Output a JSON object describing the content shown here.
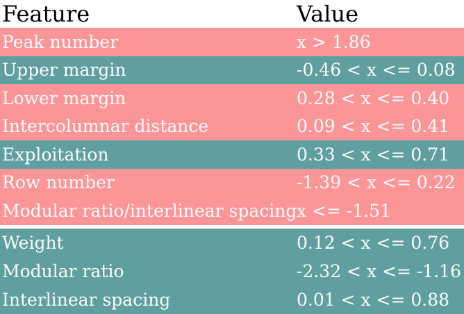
{
  "chart_data": {
    "type": "table",
    "columns": [
      "Feature",
      "Value"
    ],
    "rows": [
      {
        "feature": "Peak number",
        "value": "x > 1.86",
        "tone": "pink"
      },
      {
        "feature": "Upper margin",
        "value": "-0.46 < x <= 0.08",
        "tone": "teal"
      },
      {
        "feature": "Lower margin",
        "value": "0.28 < x <= 0.40",
        "tone": "pink"
      },
      {
        "feature": "Intercolumnar distance",
        "value": "0.09 < x <= 0.41",
        "tone": "pink"
      },
      {
        "feature": "Exploitation",
        "value": "0.33 < x <= 0.71",
        "tone": "teal"
      },
      {
        "feature": "Row number",
        "value": "-1.39 < x <= 0.22",
        "tone": "pink"
      },
      {
        "feature": "Modular ratio/interlinear spacing",
        "value": "x <= -1.51",
        "tone": "pink",
        "gap_after": true
      },
      {
        "feature": "Weight",
        "value": "0.12 < x <= 0.76",
        "tone": "teal"
      },
      {
        "feature": "Modular ratio",
        "value": "-2.32 < x <= -1.16",
        "tone": "teal"
      },
      {
        "feature": "Interlinear spacing",
        "value": "0.01 < x <= 0.88",
        "tone": "teal"
      }
    ],
    "colors": {
      "pink": "#fb9598",
      "teal": "#609fa0",
      "row_text": "#fcfcfc",
      "header_text": "#000000",
      "background": "#ffffff"
    },
    "layout": {
      "header_position": "top",
      "grid": "off",
      "value_column_x": 430
    }
  }
}
